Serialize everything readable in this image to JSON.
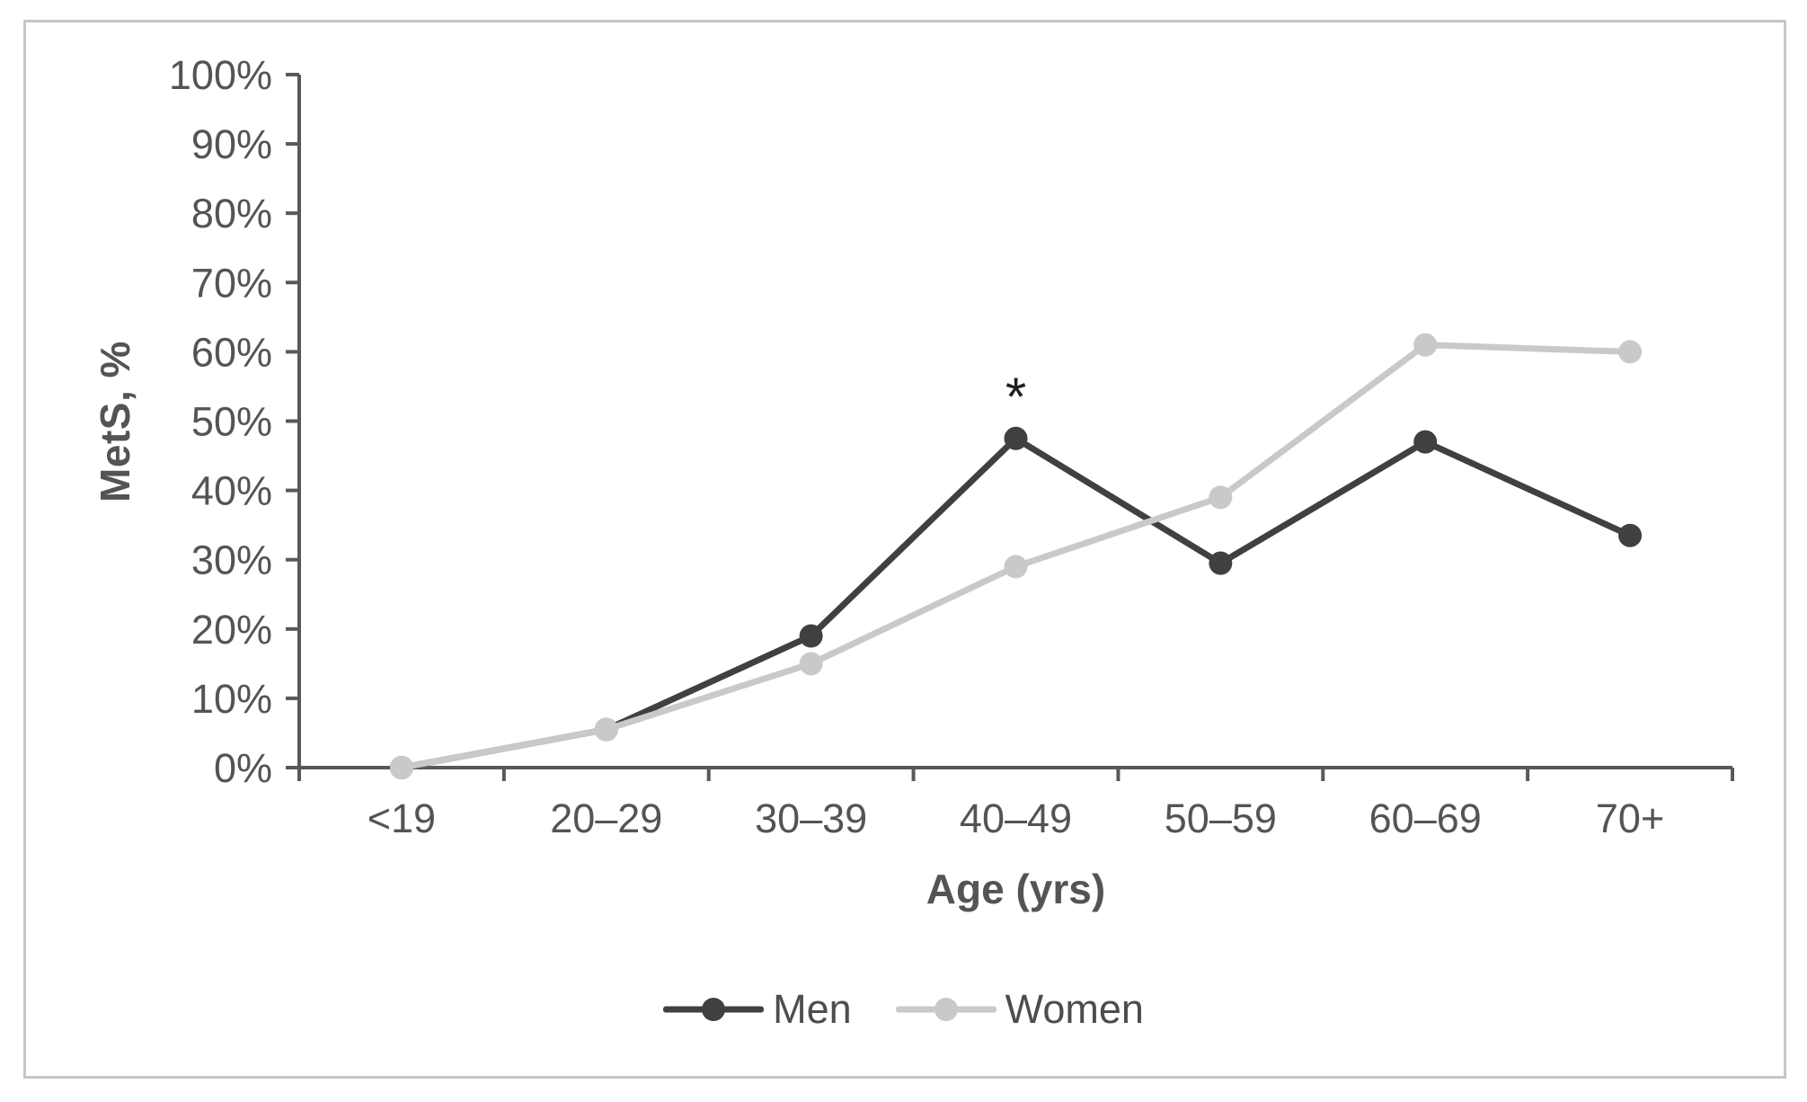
{
  "figure": {
    "xlabel": "Age (yrs)",
    "ylabel": "MetS, %"
  },
  "style": {
    "axis_color": "#595959",
    "tick_text_color": "#545454",
    "annotation_color": "#1f1f1f",
    "border_color": "#c6c6c6",
    "background": "#ffffff"
  },
  "chart_data": {
    "type": "line",
    "title": "",
    "xlabel": "Age (yrs)",
    "ylabel": "MetS, %",
    "categories": [
      "<19",
      "20–29",
      "30–39",
      "40–49",
      "50–59",
      "60–69",
      "70+"
    ],
    "y_ticks": [
      "0%",
      "10%",
      "20%",
      "30%",
      "40%",
      "50%",
      "60%",
      "70%",
      "80%",
      "90%",
      "100%"
    ],
    "ylim": [
      0,
      100
    ],
    "grid": false,
    "legend_position": "bottom",
    "series": [
      {
        "name": "Men",
        "color": "#404040",
        "values": [
          0,
          5.5,
          19,
          47.5,
          29.5,
          47,
          33.5
        ]
      },
      {
        "name": "Women",
        "color": "#c9c9c9",
        "values": [
          0,
          5.5,
          15,
          29,
          39,
          61,
          60
        ]
      }
    ],
    "annotations": [
      {
        "text": "*",
        "series": "Men",
        "category": "40–49",
        "category_index": 3,
        "y_percent": 55
      }
    ]
  }
}
